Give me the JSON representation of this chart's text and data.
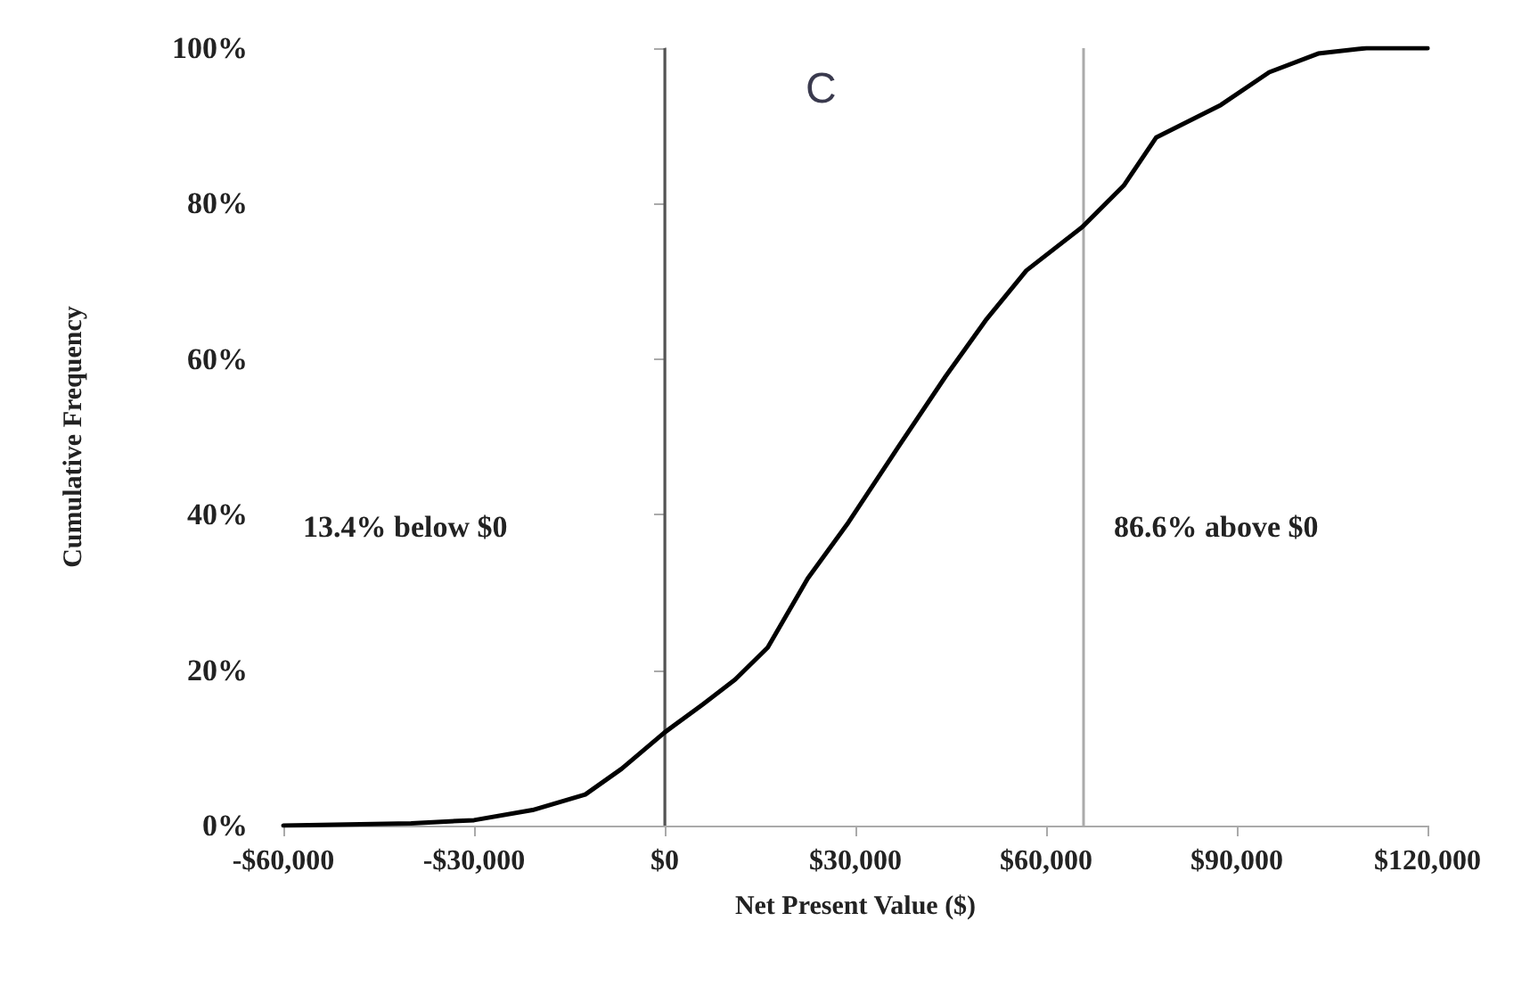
{
  "chart_data": {
    "type": "line",
    "xlabel": "Net Present Value ($)",
    "ylabel": "Cumulative Frequency",
    "x": [
      -60000,
      -39900,
      -30000,
      -20800,
      -12500,
      -6800,
      0,
      6000,
      11100,
      16200,
      22500,
      28900,
      36500,
      44200,
      50500,
      56900,
      65700,
      72200,
      77300,
      87500,
      95100,
      102800,
      110400,
      120000
    ],
    "series": [
      {
        "color": "#000000",
        "values": [
          0,
          0.3,
          0.7,
          2,
          4,
          7.3,
          12,
          15.6,
          18.8,
          22.9,
          31.8,
          39,
          48.4,
          57.8,
          65,
          71.4,
          77,
          82.3,
          88.5,
          92.7,
          96.9,
          99.3,
          100,
          100
        ]
      }
    ],
    "xlim": [
      -60000,
      120000
    ],
    "xticks": [
      {
        "value": -60000,
        "label": "-$60,000"
      },
      {
        "value": -30000,
        "label": "-$30,000"
      },
      {
        "value": 0,
        "label": "$0"
      },
      {
        "value": 30000,
        "label": "$30,000"
      },
      {
        "value": 60000,
        "label": "$60,000"
      },
      {
        "value": 90000,
        "label": "$90,000"
      },
      {
        "value": 120000,
        "label": "$120,000"
      }
    ],
    "ylim": [
      0,
      100
    ],
    "yticks": [
      {
        "value": 0,
        "label": "0%"
      },
      {
        "value": 20,
        "label": "20%"
      },
      {
        "value": 40,
        "label": "40%"
      },
      {
        "value": 60,
        "label": "60%"
      },
      {
        "value": 80,
        "label": "80%"
      },
      {
        "value": 100,
        "label": "100%"
      }
    ],
    "ref_lines": [
      {
        "axis": "x",
        "value": 0,
        "color": "#555555"
      },
      {
        "axis": "x",
        "value": 65700,
        "color": "#aaaaaa"
      }
    ],
    "annotations": [
      "C",
      "13.4% below $0",
      "86.6% above $0"
    ],
    "grid": false,
    "marker": "none",
    "line_style": "solid"
  }
}
